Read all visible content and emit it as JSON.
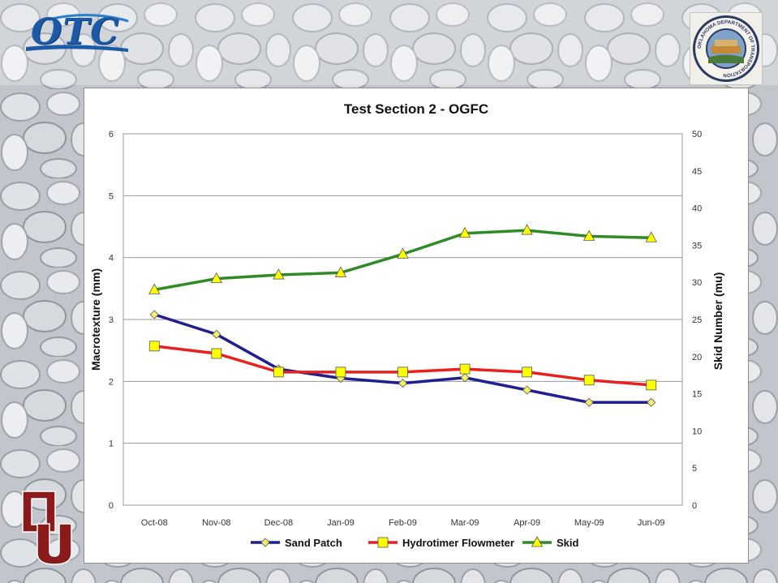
{
  "logos": {
    "otc_text": "OTC",
    "seal_text": "OKLAHOMA DEPARTMENT OF TRANSPORTATION"
  },
  "chart_data": {
    "type": "line",
    "title": "Test Section 2 - OGFC",
    "ylabel": "Macrotexture (mm)",
    "y2label": "Skid Number (mu)",
    "categories": [
      "Oct-08",
      "Nov-08",
      "Dec-08",
      "Jan-09",
      "Feb-09",
      "Mar-09",
      "Apr-09",
      "May-09",
      "Jun-09"
    ],
    "ylim": [
      0,
      6
    ],
    "y_ticks": [
      0,
      1,
      2,
      3,
      4,
      5,
      6
    ],
    "y2lim": [
      0,
      50
    ],
    "y2_ticks": [
      0,
      5,
      10,
      15,
      20,
      25,
      30,
      35,
      40,
      45,
      50
    ],
    "grid": true,
    "legend_position": "bottom",
    "series": [
      {
        "name": "Sand Patch",
        "axis": "left",
        "color": "#1f1f8f",
        "marker": "diamond",
        "marker_color": "#f5f06a",
        "values": [
          3.08,
          2.76,
          2.2,
          2.05,
          1.97,
          2.06,
          1.86,
          1.66,
          1.66
        ]
      },
      {
        "name": "Hydrotimer Flowmeter",
        "axis": "left",
        "color": "#e8211f",
        "marker": "square",
        "marker_color": "#ffff00",
        "values": [
          2.57,
          2.45,
          2.15,
          2.15,
          2.15,
          2.2,
          2.15,
          2.02,
          1.94
        ]
      },
      {
        "name": "Skid",
        "axis": "right",
        "color": "#2e8b26",
        "marker": "triangle",
        "marker_color": "#ffff00",
        "values": [
          29.0,
          30.5,
          31.0,
          31.3,
          33.8,
          36.6,
          37.0,
          36.2,
          36.0
        ]
      }
    ]
  }
}
